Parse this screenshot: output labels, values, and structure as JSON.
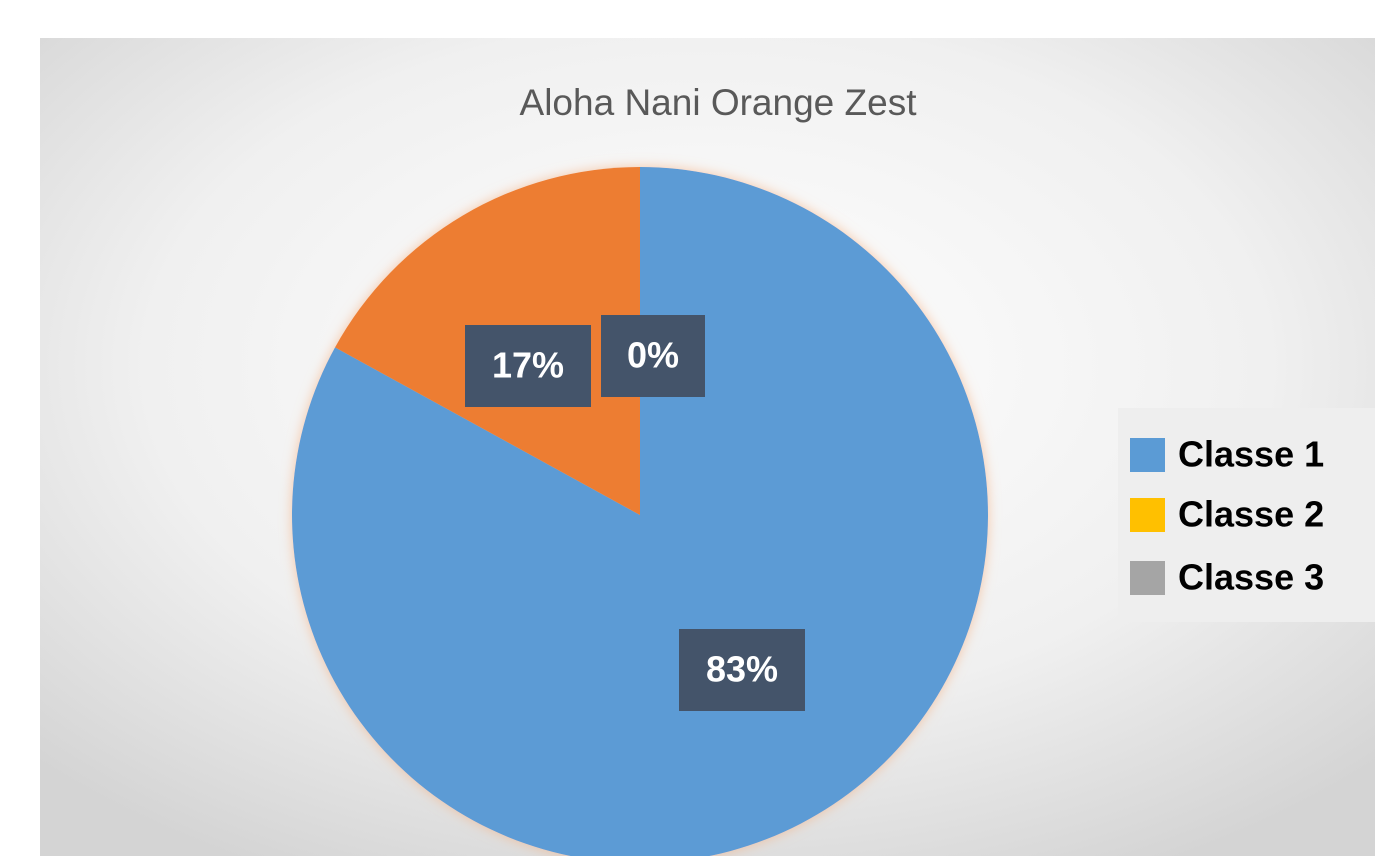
{
  "chart_data": {
    "type": "pie",
    "title": "Aloha Nani Orange Zest",
    "categories": [
      "Classe 1",
      "Classe 2",
      "Classe 3"
    ],
    "values": [
      83,
      17,
      0
    ],
    "value_labels": [
      "83%",
      "17%",
      "0%"
    ],
    "colors": [
      "#5b9bd5",
      "#ed7d31",
      "#a5a5a5"
    ],
    "legend_colors": [
      "#5b9bd5",
      "#ffc000",
      "#a5a5a5"
    ],
    "legend": "right"
  }
}
